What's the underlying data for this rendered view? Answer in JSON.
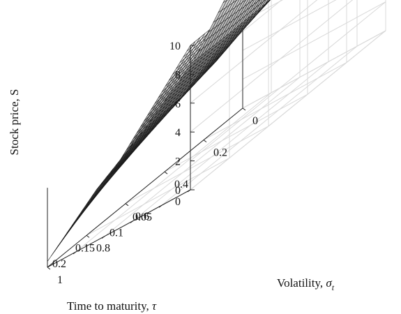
{
  "chart_data": {
    "type": "surface",
    "title": "",
    "axes": {
      "x": {
        "label_text": "Time to maturity, ",
        "label_symbol": "τ",
        "range": [
          0,
          0.25
        ],
        "ticks": [
          0,
          0.05,
          0.1,
          0.15,
          0.2
        ],
        "tick_labels": [
          "0",
          "0.05",
          "0.1",
          "0.15",
          "0.2"
        ]
      },
      "y": {
        "label_text": "Volatility, ",
        "label_symbol": "σ",
        "label_subscript": "t",
        "range": [
          0,
          1
        ],
        "ticks": [
          0,
          0.2,
          0.4,
          0.6,
          0.8,
          1
        ],
        "tick_labels": [
          "0",
          "0.2",
          "0.4",
          "0.6",
          "0.8",
          "1"
        ]
      },
      "z": {
        "label": "Stock price, S",
        "range": [
          0,
          10
        ],
        "ticks": [
          0,
          2,
          4,
          6,
          8,
          10
        ],
        "tick_labels": [
          "0",
          "2",
          "4",
          "6",
          "8",
          "10"
        ]
      }
    },
    "grid": true,
    "surface": {
      "colormap": "gray",
      "tau_samples": [
        0,
        0.0625,
        0.125,
        0.1875,
        0.25
      ],
      "sigma_samples": [
        0,
        0.25,
        0.5,
        0.75,
        1
      ],
      "S_values": [
        [
          10.0,
          10.0,
          10.0,
          10.0,
          10.0
        ],
        [
          10.0,
          8.4,
          7.9,
          7.6,
          7.3
        ],
        [
          10.0,
          7.3,
          6.1,
          5.3,
          4.6
        ],
        [
          10.0,
          6.6,
          4.9,
          3.8,
          2.6
        ],
        [
          10.0,
          6.0,
          4.1,
          2.6,
          0.4
        ]
      ]
    }
  }
}
